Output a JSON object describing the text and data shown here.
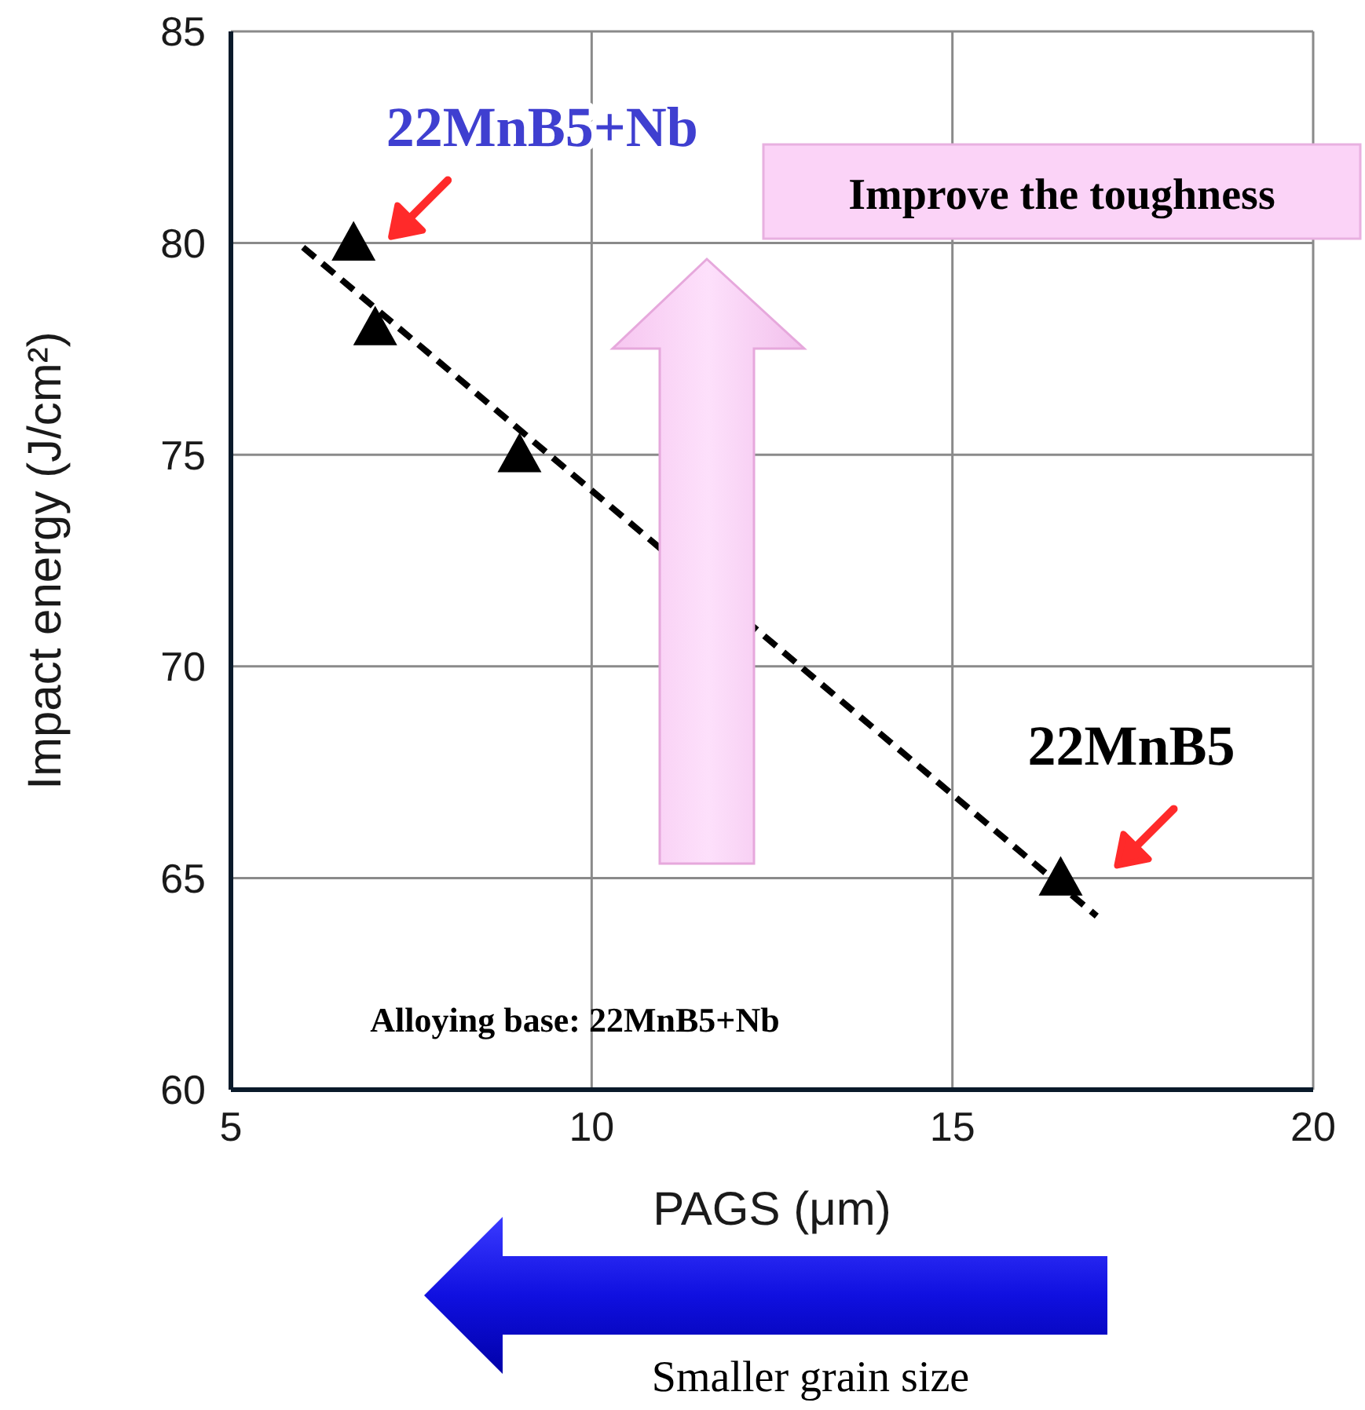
{
  "chart_data": {
    "type": "scatter",
    "xlabel": "PAGS (μm)",
    "ylabel": "Impact energy (J/cm²)",
    "xlim": [
      5,
      20
    ],
    "xticks": [
      5,
      10,
      15,
      20
    ],
    "ylim": [
      60,
      85
    ],
    "yticks": [
      60,
      65,
      70,
      75,
      80,
      85
    ],
    "grid": true,
    "marker": "triangle",
    "series": [
      {
        "color": "#000000",
        "x": [
          6.7,
          7,
          9,
          16.5
        ],
        "values": [
          80,
          78,
          75,
          65
        ]
      },
      {
        "type": "line",
        "color": "#000000",
        "line_style": "dashed",
        "marker": "none",
        "x": [
          6,
          17
        ],
        "values": [
          79.9,
          64.1
        ]
      }
    ],
    "annotations": [
      {
        "text": "22MnB5+Nb",
        "x": 6.7,
        "y": 80
      },
      {
        "text": "22MnB5",
        "x": 16.5,
        "y": 65
      },
      "Improve the toughness",
      "Alloying base: 22MnB5+Nb",
      "Smaller grain size"
    ]
  }
}
